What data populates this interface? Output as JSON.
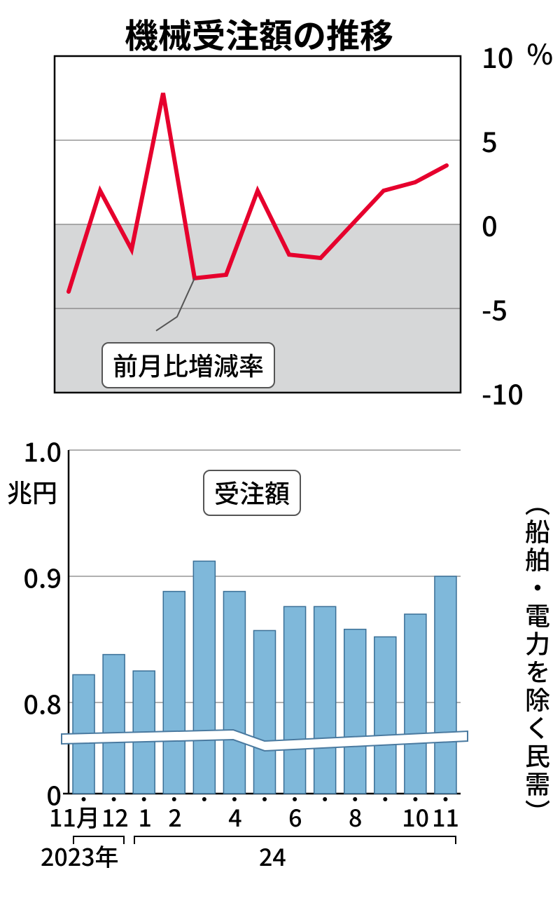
{
  "title": "機械受注額の推移",
  "top_chart": {
    "type": "line",
    "unit": "%",
    "ylim": [
      -10,
      10
    ],
    "yticks": [
      10,
      5,
      0,
      -5,
      -10
    ],
    "values": [
      -4.0,
      2.0,
      -1.5,
      7.8,
      -3.2,
      -3.0,
      2.0,
      -1.8,
      -2.0,
      0.0,
      2.0,
      2.5,
      3.5
    ],
    "line_color": "#e6002d",
    "line_width": 6,
    "grid_color": "#808080",
    "grid_width": 1.2,
    "shade_color": "#d6d7d8",
    "border_color": "#000000",
    "label_text": "前月比増減率",
    "label_box_border": "#666666"
  },
  "bottom_chart": {
    "type": "bar",
    "unit": "兆円",
    "break_axis": true,
    "ylim": [
      0.75,
      1.0
    ],
    "yticks": [
      "1.0",
      "0.9",
      "0.8",
      "0"
    ],
    "values": [
      0.822,
      0.838,
      0.825,
      0.888,
      0.912,
      0.888,
      0.857,
      0.876,
      0.876,
      0.858,
      0.852,
      0.87,
      0.9
    ],
    "bar_color": "#7fb8da",
    "bar_border": "#3a6f96",
    "bar_gap": 0.28,
    "grid_color": "#808080",
    "border_color": "#000000",
    "label_text": "受注額",
    "break_line_color": "#ffffff",
    "break_line_border": "#4a7aa0"
  },
  "x_labels": [
    "11月",
    "12",
    "1",
    "2",
    "",
    "4",
    "",
    "6",
    "",
    "8",
    "",
    "10",
    "11"
  ],
  "x_ticks_all": 13,
  "year_2023": "2023年",
  "year_24": "24",
  "vertical_note": "（船舶・電力を除く民需）"
}
